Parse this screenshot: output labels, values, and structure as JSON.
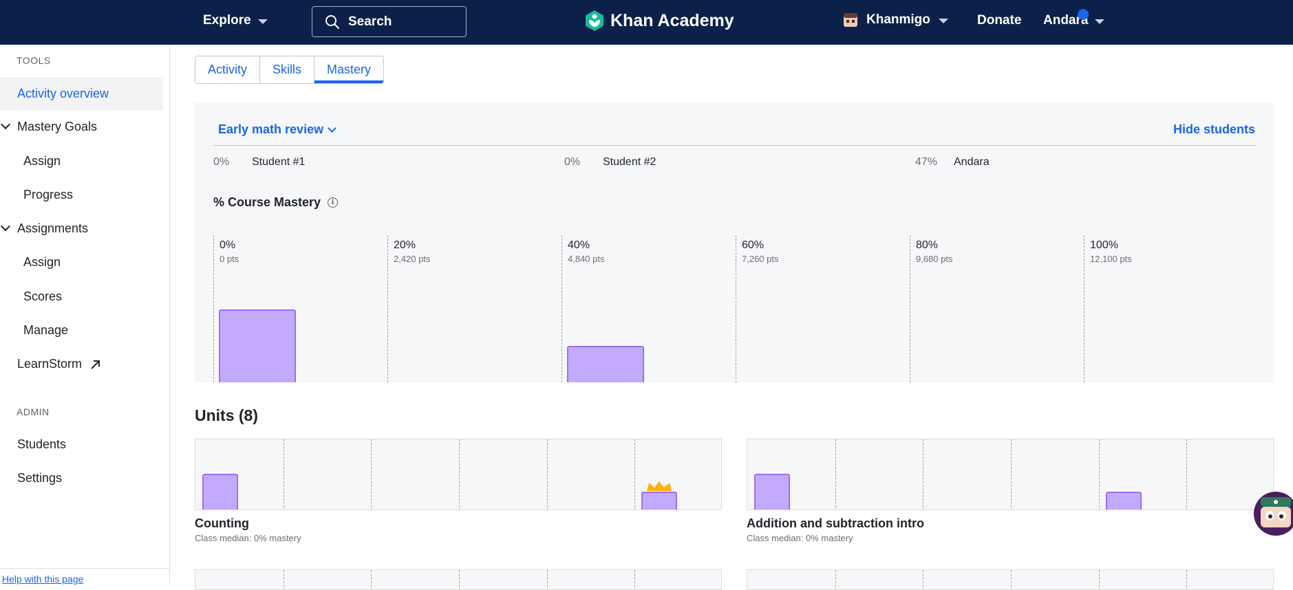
{
  "header": {
    "explore_label": "Explore",
    "search_label": "Search",
    "logo_text": "Khan Academy",
    "khanmigo_label": "Khanmigo",
    "donate_label": "Donate",
    "user_label": "Andara"
  },
  "sidebar": {
    "tools_heading": "TOOLS",
    "activity_overview": "Activity overview",
    "mastery_goals": "Mastery Goals",
    "mastery_assign": "Assign",
    "mastery_progress": "Progress",
    "assignments": "Assignments",
    "assignments_assign": "Assign",
    "assignments_scores": "Scores",
    "assignments_manage": "Manage",
    "learnstorm": "LearnStorm",
    "admin_heading": "ADMIN",
    "students": "Students",
    "settings": "Settings",
    "help": "Help with this page"
  },
  "tabs": [
    {
      "label": "Activity"
    },
    {
      "label": "Skills"
    },
    {
      "label": "Mastery",
      "active": true
    }
  ],
  "mastery": {
    "course_label": "Early math review",
    "hide_students_label": "Hide students",
    "students": [
      {
        "pct": "0%",
        "name": "Student #1"
      },
      {
        "pct": "0%",
        "name": "Student #2"
      },
      {
        "pct": "47%",
        "name": "Andara"
      }
    ],
    "title": "% Course Mastery",
    "info_glyph": "i",
    "ticks": [
      {
        "label": "0%",
        "pts": "0 pts"
      },
      {
        "label": "20%",
        "pts": "2,420 pts"
      },
      {
        "label": "40%",
        "pts": "4,840 pts"
      },
      {
        "label": "60%",
        "pts": "7,260 pts"
      },
      {
        "label": "80%",
        "pts": "9,680 pts"
      },
      {
        "label": "100%",
        "pts": "12,100 pts"
      }
    ]
  },
  "chart_data": {
    "type": "bar",
    "categories": [
      "0%",
      "20%",
      "40%",
      "60%",
      "80%",
      "100%"
    ],
    "values": [
      2,
      0,
      1,
      0,
      0,
      0
    ],
    "title": "% Course Mastery",
    "xlabel": "",
    "ylabel": "",
    "ylim": [
      0,
      2
    ]
  },
  "units": {
    "title": "Units (8)",
    "items": [
      {
        "name": "Counting",
        "median": "Class median: 0% mastery",
        "bars": [
          2,
          0,
          0,
          0,
          0,
          1
        ],
        "crown_bin": 5
      },
      {
        "name": "Addition and subtraction intro",
        "median": "Class median: 0% mastery",
        "bars": [
          2,
          0,
          0,
          0,
          1,
          0
        ],
        "crown_bin": -1
      }
    ]
  },
  "colors": {
    "header_bg": "#0b2149",
    "accent": "#1865f2",
    "bar_fill": "#c4aaff",
    "bar_border": "#9b6ef3",
    "crown": "#ffb100"
  }
}
